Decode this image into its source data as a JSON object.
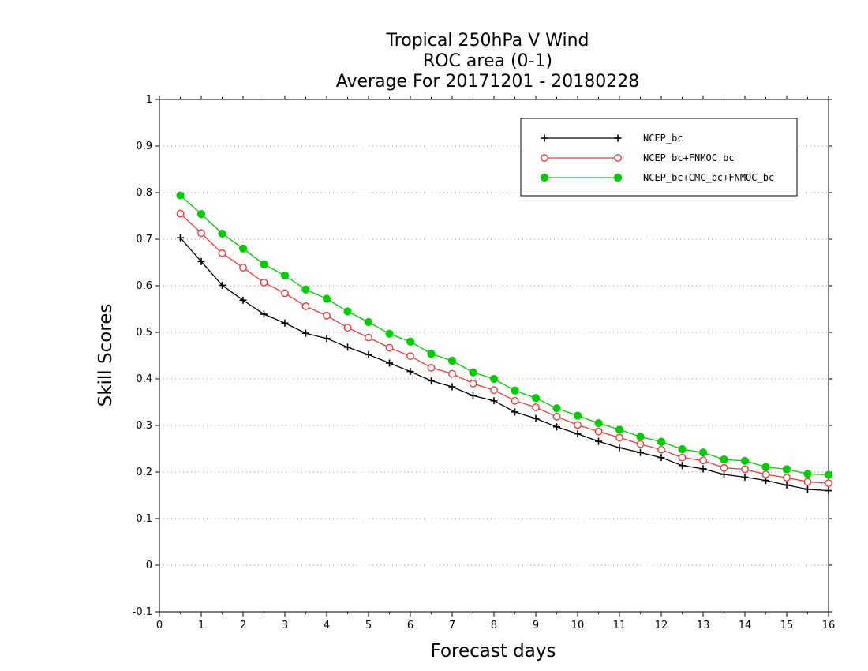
{
  "chart_data": {
    "type": "line",
    "title_lines": [
      "Tropical 250hPa V Wind",
      "ROC area (0-1)",
      "Average For 20171201 - 20180228"
    ],
    "xlabel": "Forecast days",
    "ylabel": "Skill Scores",
    "xlim": [
      0,
      16
    ],
    "ylim": [
      -0.1,
      1
    ],
    "x_ticks": [
      0,
      1,
      2,
      3,
      4,
      5,
      6,
      7,
      8,
      9,
      10,
      11,
      12,
      13,
      14,
      15,
      16
    ],
    "x_tick_labels": [
      "0",
      "1",
      "2",
      "3",
      "4",
      "5",
      "6",
      "7",
      "8",
      "9",
      "10",
      "11",
      "12",
      "13",
      "14",
      "15",
      "16"
    ],
    "y_ticks": [
      -0.1,
      0,
      0.1,
      0.2,
      0.3,
      0.4,
      0.5,
      0.6,
      0.7,
      0.8,
      0.9,
      1
    ],
    "y_tick_labels": [
      "-0.1",
      "0",
      "0.1",
      "0.2",
      "0.3",
      "0.4",
      "0.5",
      "0.6",
      "0.7",
      "0.8",
      "0.9",
      "1"
    ],
    "grid": "horizontal-dotted",
    "legend_position": "top-right",
    "x": [
      0.5,
      1,
      1.5,
      2,
      2.5,
      3,
      3.5,
      4,
      4.5,
      5,
      5.5,
      6,
      6.5,
      7,
      7.5,
      8,
      8.5,
      9,
      9.5,
      10,
      10.5,
      11,
      11.5,
      12,
      12.5,
      13,
      13.5,
      14,
      14.5,
      15,
      15.5,
      16
    ],
    "series": [
      {
        "name": "NCEP_bc",
        "color": "#000000",
        "marker": "plus",
        "values": [
          0.703,
          0.652,
          0.601,
          0.569,
          0.539,
          0.52,
          0.498,
          0.487,
          0.468,
          0.452,
          0.434,
          0.416,
          0.396,
          0.383,
          0.364,
          0.353,
          0.329,
          0.315,
          0.297,
          0.282,
          0.266,
          0.252,
          0.242,
          0.231,
          0.214,
          0.207,
          0.195,
          0.189,
          0.182,
          0.172,
          0.163,
          0.16
        ]
      },
      {
        "name": "NCEP_bc+FNMOC_bc",
        "color": "#ee3b3b",
        "marker": "open-circle",
        "values": [
          0.755,
          0.713,
          0.67,
          0.639,
          0.607,
          0.584,
          0.556,
          0.536,
          0.51,
          0.489,
          0.467,
          0.449,
          0.424,
          0.411,
          0.39,
          0.376,
          0.353,
          0.339,
          0.319,
          0.301,
          0.287,
          0.274,
          0.26,
          0.248,
          0.231,
          0.225,
          0.209,
          0.206,
          0.195,
          0.188,
          0.179,
          0.176
        ]
      },
      {
        "name": "NCEP_bc+CMC_bc+FNMOC_bc",
        "color": "#00cc00",
        "marker": "filled-circle",
        "values": [
          0.794,
          0.754,
          0.712,
          0.68,
          0.646,
          0.622,
          0.592,
          0.572,
          0.545,
          0.522,
          0.497,
          0.48,
          0.454,
          0.439,
          0.414,
          0.4,
          0.375,
          0.359,
          0.337,
          0.321,
          0.305,
          0.291,
          0.276,
          0.265,
          0.249,
          0.242,
          0.227,
          0.224,
          0.211,
          0.206,
          0.196,
          0.194
        ]
      }
    ]
  }
}
